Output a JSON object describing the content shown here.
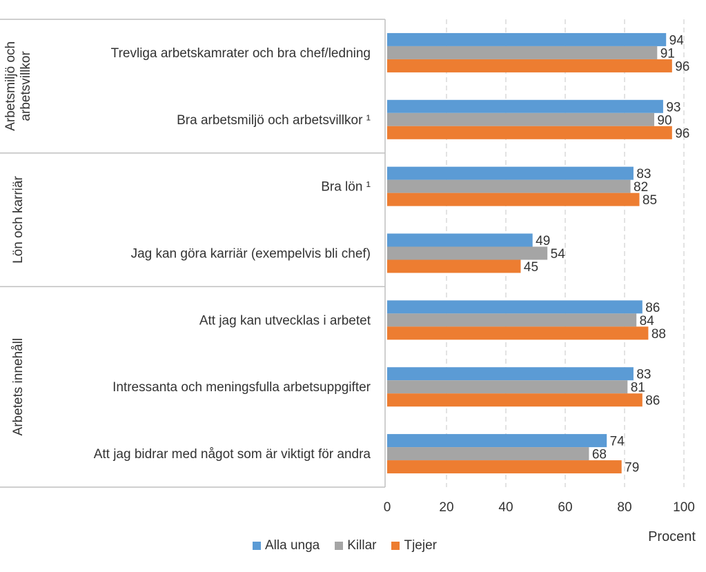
{
  "chart_data": {
    "type": "bar",
    "orientation": "horizontal",
    "groups": [
      {
        "label": "Arbetsmiljö och arbetsvillkor",
        "lines": [
          "Arbetsmiljö och",
          "arbetsvillkor"
        ],
        "count": 2
      },
      {
        "label": "Lön och karriär",
        "lines": [
          "Lön och karriär"
        ],
        "count": 2
      },
      {
        "label": "Arbetets innehåll",
        "lines": [
          "Arbetets innehåll"
        ],
        "count": 3
      }
    ],
    "categories": [
      "Trevliga arbetskamrater och bra chef/ledning",
      "Bra arbetsmiljö och arbetsvillkor ¹",
      "Bra lön ¹",
      "Jag kan göra karriär (exempelvis bli chef)",
      "Att jag kan utvecklas i arbetet",
      "Intressanta och meningsfulla arbetsuppgifter",
      "Att jag bidrar med något som är viktigt för andra"
    ],
    "series": [
      {
        "name": "Alla unga",
        "color": "#5B9BD5",
        "values": [
          94,
          93,
          83,
          49,
          86,
          83,
          74
        ]
      },
      {
        "name": "Killar",
        "color": "#A5A5A5",
        "values": [
          91,
          90,
          82,
          54,
          84,
          81,
          68
        ]
      },
      {
        "name": "Tjejer",
        "color": "#ED7D31",
        "values": [
          96,
          96,
          85,
          45,
          88,
          86,
          79
        ]
      }
    ],
    "xlim": [
      0,
      100
    ],
    "xticks": [
      0,
      20,
      40,
      60,
      80,
      100
    ],
    "xlabel": "Procent",
    "grid": "vertical-dashed",
    "legend_position": "bottom"
  }
}
